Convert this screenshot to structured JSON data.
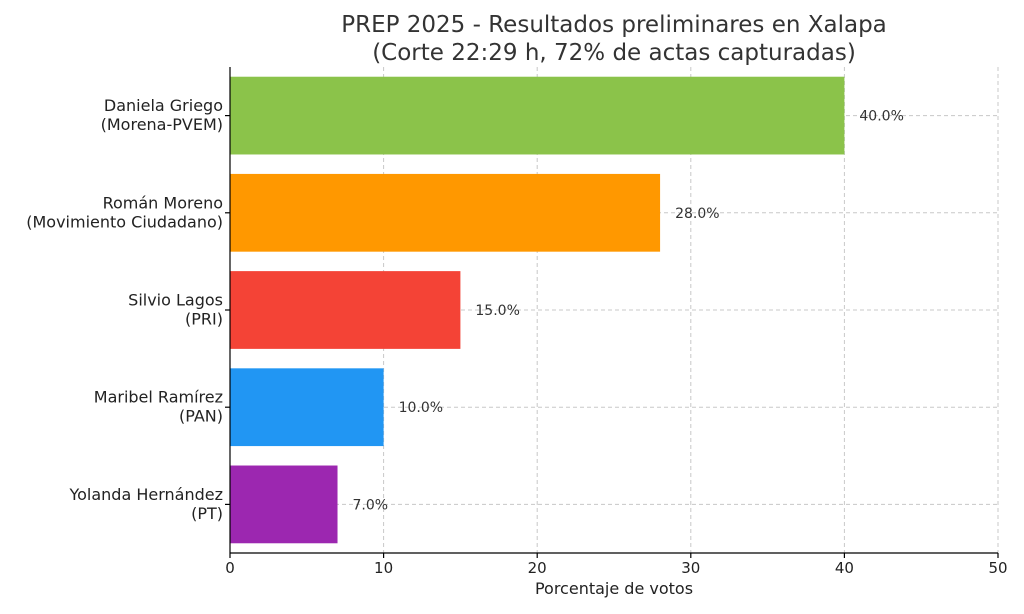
{
  "chart_data": {
    "type": "bar",
    "orientation": "horizontal",
    "title": [
      "PREP 2025 - Resultados preliminares en Xalapa",
      "(Corte 22:29 h, 72% de actas capturadas)"
    ],
    "xlabel": "Porcentaje de votos",
    "ylabel": "",
    "xlim": [
      0,
      50
    ],
    "xticks": [
      0,
      10,
      20,
      30,
      40,
      50
    ],
    "grid": true,
    "categories": [
      [
        "Daniela Griego",
        "(Morena-PVEM)"
      ],
      [
        "Román Moreno",
        "(Movimiento Ciudadano)"
      ],
      [
        "Silvio Lagos",
        "(PRI)"
      ],
      [
        "Maribel Ramírez",
        "(PAN)"
      ],
      [
        "Yolanda Hernández",
        "(PT)"
      ]
    ],
    "values": [
      40.0,
      28.0,
      15.0,
      10.0,
      7.0
    ],
    "value_labels": [
      "40.0%",
      "28.0%",
      "15.0%",
      "10.0%",
      "7.0%"
    ],
    "colors": [
      "#8BC34A",
      "#FF9800",
      "#F44336",
      "#2196F3",
      "#9C27B0"
    ]
  }
}
